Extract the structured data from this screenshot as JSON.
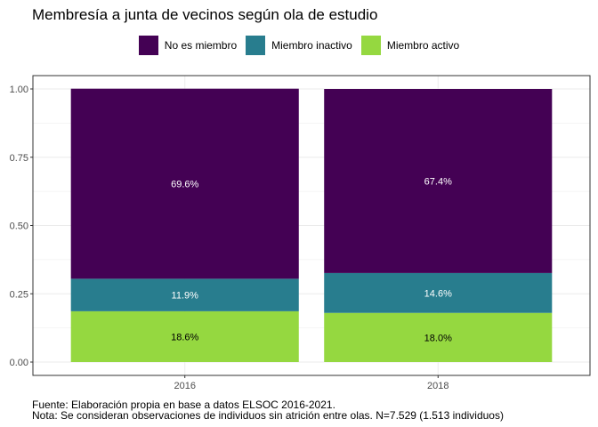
{
  "chart_data": {
    "type": "bar",
    "stacked": true,
    "title": "Membresía a junta de vecinos según ola de estudio",
    "xlabel": "",
    "ylabel": "",
    "categories": [
      "2016",
      "2018"
    ],
    "ylim": [
      0,
      1
    ],
    "yticks": [
      0,
      0.25,
      0.5,
      0.75,
      1
    ],
    "ytick_labels": [
      "0.00",
      "0.25",
      "0.50",
      "0.75",
      "1.00"
    ],
    "grid": true,
    "legend_position": "top",
    "series": [
      {
        "name": "Miembro activo",
        "color": "#95d840",
        "label_color": "#000000",
        "values": [
          0.186,
          0.18
        ],
        "labels": [
          "18.6%",
          "18.0%"
        ]
      },
      {
        "name": "Miembro inactivo",
        "color": "#287d8e",
        "label_color": "#ffffff",
        "values": [
          0.119,
          0.146
        ],
        "labels": [
          "11.9%",
          "14.6%"
        ]
      },
      {
        "name": "No es miembro",
        "color": "#440154",
        "label_color": "#ffffff",
        "values": [
          0.696,
          0.674
        ],
        "labels": [
          "69.6%",
          "67.4%"
        ]
      }
    ],
    "legend_order": [
      "No es miembro",
      "Miembro inactivo",
      "Miembro activo"
    ],
    "caption": [
      "Fuente: Elaboración propia en base a datos ELSOC 2016-2021.",
      "Nota: Se consideran observaciones de individuos sin atrición entre olas. N=7.529 (1.513 individuos)"
    ]
  }
}
